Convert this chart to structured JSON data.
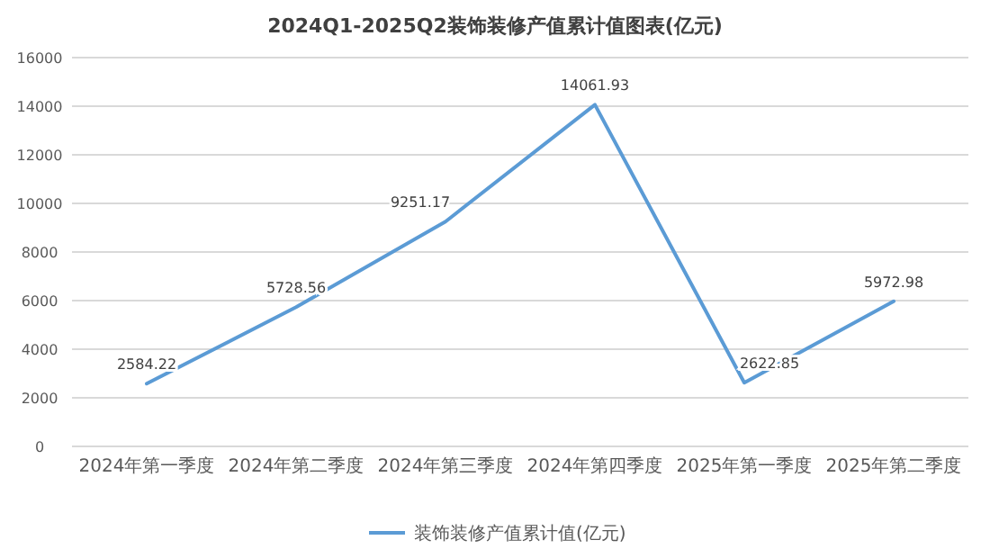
{
  "chart_data": {
    "type": "line",
    "title": "2024Q1-2025Q2装饰装修产值累计值图表(亿元)",
    "categories": [
      "2024年第一季度",
      "2024年第二季度",
      "2024年第三季度",
      "2024年第四季度",
      "2025年第一季度",
      "2025年第二季度"
    ],
    "series": [
      {
        "name": "装饰装修产值累计值(亿元)",
        "color": "#5b9bd5",
        "values": [
          2584.22,
          5728.56,
          9251.17,
          14061.93,
          2622.85,
          5972.98
        ]
      }
    ],
    "ylim": [
      0,
      16000
    ],
    "yticks": [
      0,
      2000,
      4000,
      6000,
      8000,
      10000,
      12000,
      14000,
      16000
    ],
    "grid": "y",
    "legend": "bottom",
    "data_labels": true,
    "marker": "none",
    "line_style": "solid"
  }
}
